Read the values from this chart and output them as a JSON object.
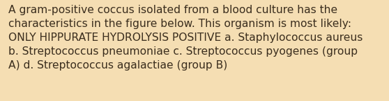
{
  "background_color": "#f5deb3",
  "text_color": "#3b2e1e",
  "line1": "A gram-positive coccus isolated from a blood culture has the",
  "line2": "characteristics in the figure below. This organism is most likely:",
  "line3": "ONLY HIPPURATE HYDROLYSIS POSITIVE a. Staphylococcus aureus",
  "line4": "b. Streptococcus pneumoniae c. Streptococcus pyogenes (group",
  "line5": "A) d. Streptococcus agalactiae (group B)",
  "font_size": 11.2,
  "fig_width": 5.58,
  "fig_height": 1.46,
  "dpi": 100,
  "linespacing": 1.42
}
